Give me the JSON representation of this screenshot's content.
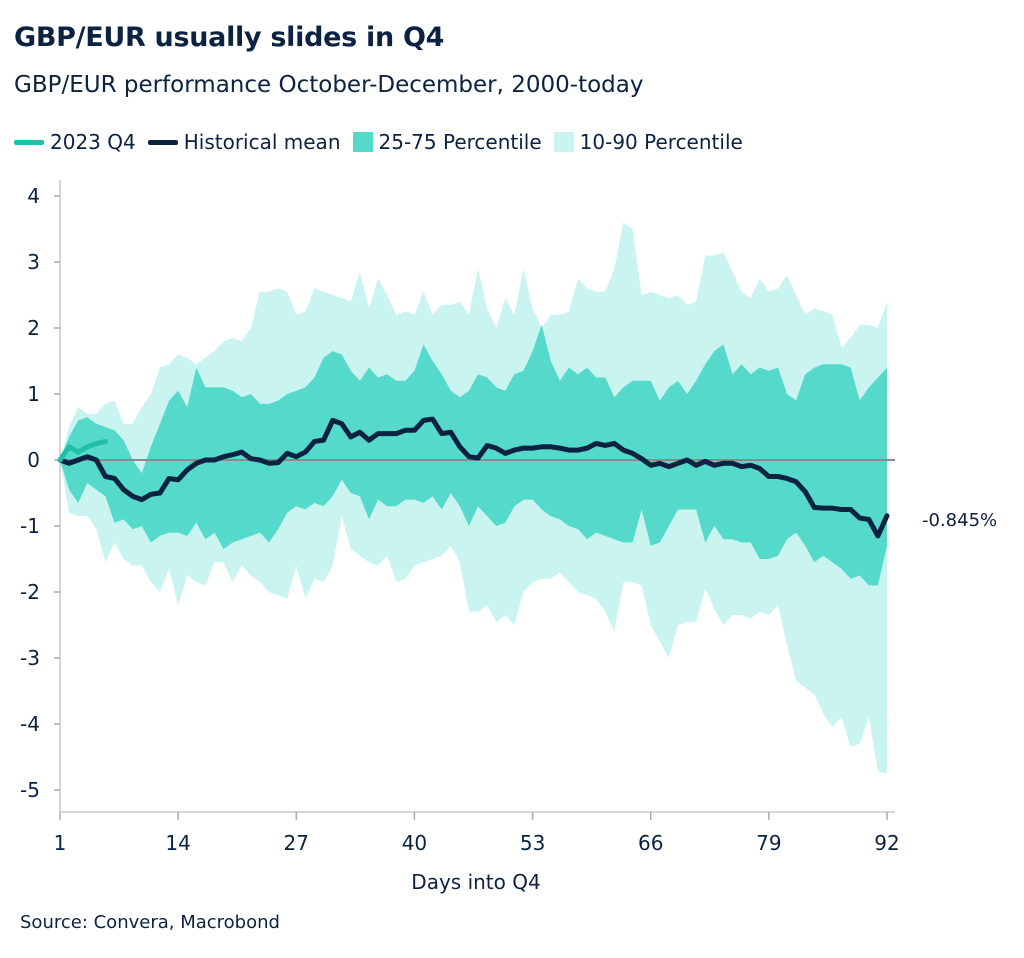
{
  "header": {
    "title": "GBP/EUR usually slides in Q4",
    "subtitle": "GBP/EUR performance October-December, 2000-today"
  },
  "source": "Source: Convera, Macrobond",
  "colors": {
    "q4_2023": "#1fbfa8",
    "mean": "#0b2240",
    "p25_75": "#55d9cb",
    "p10_90": "#caf4ef",
    "zero_line": "#8a8a8a"
  },
  "chart_data": {
    "type": "area",
    "title": "GBP/EUR usually slides in Q4",
    "subtitle": "GBP/EUR performance October-December, 2000-today",
    "xlabel": "Days into Q4",
    "ylabel": "",
    "xlim": [
      1,
      92
    ],
    "ylim": [
      -5,
      4
    ],
    "xticks": [
      "1",
      "14",
      "27",
      "40",
      "53",
      "66",
      "79",
      "92"
    ],
    "yticks": [
      "4",
      "3",
      "2",
      "1",
      "0",
      "-1",
      "-2",
      "-3",
      "-4",
      "-5"
    ],
    "grid": false,
    "legend_position": "top",
    "end_label": "-0.845%",
    "legend": [
      "2023 Q4",
      "Historical mean",
      "25-75 Percentile",
      "10-90 Percentile"
    ],
    "series": {
      "q4_2023": [
        0,
        0.2,
        0.12,
        0.2,
        0.25,
        0.28
      ],
      "mean": [
        0,
        -0.05,
        0,
        0.05,
        0,
        -0.25,
        -0.28,
        -0.45,
        -0.55,
        -0.6,
        -0.52,
        -0.5,
        -0.28,
        -0.3,
        -0.15,
        -0.05,
        0,
        0,
        0.05,
        0.08,
        0.12,
        0.02,
        0,
        -0.05,
        -0.04,
        0.1,
        0.05,
        0.12,
        0.28,
        0.3,
        0.6,
        0.55,
        0.35,
        0.42,
        0.3,
        0.4,
        0.4,
        0.4,
        0.45,
        0.45,
        0.6,
        0.62,
        0.4,
        0.42,
        0.2,
        0.05,
        0.03,
        0.22,
        0.18,
        0.1,
        0.15,
        0.18,
        0.18,
        0.2,
        0.2,
        0.18,
        0.15,
        0.15,
        0.18,
        0.25,
        0.22,
        0.25,
        0.15,
        0.1,
        0.02,
        -0.08,
        -0.05,
        -0.1,
        -0.05,
        0,
        -0.08,
        -0.02,
        -0.08,
        -0.05,
        -0.05,
        -0.1,
        -0.08,
        -0.13,
        -0.25,
        -0.25,
        -0.28,
        -0.33,
        -0.48,
        -0.72,
        -0.73,
        -0.73,
        -0.75,
        -0.75,
        -0.88,
        -0.9,
        -1.15,
        -0.845
      ],
      "p90": [
        0,
        0.5,
        0.8,
        0.7,
        0.7,
        0.85,
        0.9,
        0.55,
        0.55,
        0.8,
        1.0,
        1.4,
        1.45,
        1.6,
        1.55,
        1.45,
        1.55,
        1.65,
        1.8,
        1.85,
        1.8,
        2.0,
        2.55,
        2.55,
        2.6,
        2.55,
        2.2,
        2.25,
        2.6,
        2.55,
        2.5,
        2.45,
        2.4,
        2.85,
        2.3,
        2.75,
        2.5,
        2.2,
        2.25,
        2.2,
        2.55,
        2.2,
        2.35,
        2.35,
        2.4,
        2.2,
        2.9,
        2.3,
        2.0,
        2.45,
        2.2,
        2.9,
        2.3,
        2.0,
        2.2,
        2.2,
        2.25,
        2.75,
        2.6,
        2.55,
        2.55,
        2.9,
        3.6,
        3.5,
        2.5,
        2.55,
        2.5,
        2.45,
        2.5,
        2.35,
        2.4,
        3.1,
        3.1,
        3.15,
        2.85,
        2.55,
        2.45,
        2.75,
        2.55,
        2.6,
        2.8,
        2.5,
        2.2,
        2.3,
        2.25,
        2.2,
        1.7,
        1.85,
        2.05,
        2.05,
        2.0,
        2.4
      ],
      "p75": [
        0,
        0.35,
        0.6,
        0.65,
        0.55,
        0.5,
        0.45,
        0.3,
        0.0,
        -0.2,
        0.2,
        0.55,
        0.9,
        1.05,
        0.8,
        1.4,
        1.1,
        1.1,
        1.1,
        1.05,
        0.95,
        1.0,
        0.85,
        0.85,
        0.9,
        1.0,
        1.05,
        1.1,
        1.25,
        1.55,
        1.65,
        1.6,
        1.35,
        1.2,
        1.4,
        1.25,
        1.3,
        1.2,
        1.2,
        1.35,
        1.75,
        1.5,
        1.3,
        1.05,
        0.95,
        1.05,
        1.3,
        1.25,
        1.1,
        1.05,
        1.3,
        1.35,
        1.65,
        2.05,
        1.5,
        1.2,
        1.4,
        1.3,
        1.4,
        1.25,
        1.25,
        0.95,
        1.1,
        1.2,
        1.2,
        1.2,
        0.9,
        1.1,
        1.2,
        1.0,
        1.2,
        1.45,
        1.65,
        1.75,
        1.3,
        1.45,
        1.3,
        1.4,
        1.35,
        1.4,
        1.0,
        0.9,
        1.3,
        1.4,
        1.45,
        1.45,
        1.45,
        1.4,
        0.9,
        1.1,
        1.25,
        1.4
      ],
      "p25": [
        0,
        -0.45,
        -0.65,
        -0.35,
        -0.45,
        -0.55,
        -0.95,
        -0.9,
        -1.05,
        -1.0,
        -1.25,
        -1.15,
        -1.1,
        -1.1,
        -1.15,
        -0.95,
        -1.2,
        -1.1,
        -1.35,
        -1.25,
        -1.2,
        -1.15,
        -1.1,
        -1.25,
        -1.05,
        -0.8,
        -0.7,
        -0.75,
        -0.65,
        -0.7,
        -0.55,
        -0.3,
        -0.5,
        -0.55,
        -0.9,
        -0.6,
        -0.7,
        -0.7,
        -0.6,
        -0.6,
        -0.65,
        -0.55,
        -0.75,
        -0.5,
        -0.7,
        -1.0,
        -0.7,
        -0.85,
        -1.0,
        -0.95,
        -0.7,
        -0.6,
        -0.6,
        -0.75,
        -0.85,
        -0.9,
        -1.0,
        -1.05,
        -1.2,
        -1.1,
        -1.15,
        -1.2,
        -1.25,
        -1.25,
        -0.75,
        -1.3,
        -1.25,
        -1.0,
        -0.75,
        -0.75,
        -0.75,
        -1.25,
        -1.0,
        -1.2,
        -1.2,
        -1.25,
        -1.25,
        -1.5,
        -1.5,
        -1.45,
        -1.2,
        -1.1,
        -1.3,
        -1.55,
        -1.45,
        -1.55,
        -1.65,
        -1.8,
        -1.75,
        -1.9,
        -1.9,
        -1.3
      ],
      "p10": [
        0,
        -0.8,
        -0.85,
        -0.85,
        -1.05,
        -1.55,
        -1.25,
        -1.5,
        -1.6,
        -1.6,
        -1.85,
        -2.0,
        -1.65,
        -2.2,
        -1.75,
        -1.85,
        -1.9,
        -1.55,
        -1.55,
        -1.85,
        -1.6,
        -1.75,
        -1.85,
        -2.0,
        -2.05,
        -2.1,
        -1.6,
        -2.1,
        -1.8,
        -1.85,
        -1.6,
        -0.85,
        -1.35,
        -1.45,
        -1.55,
        -1.6,
        -1.45,
        -1.85,
        -1.8,
        -1.6,
        -1.55,
        -1.5,
        -1.45,
        -1.3,
        -1.55,
        -2.3,
        -2.3,
        -2.2,
        -2.45,
        -2.35,
        -2.5,
        -2.0,
        -1.85,
        -1.8,
        -1.8,
        -1.7,
        -1.85,
        -2.0,
        -2.05,
        -2.1,
        -2.3,
        -2.6,
        -1.85,
        -1.85,
        -1.9,
        -2.5,
        -2.75,
        -3.0,
        -2.5,
        -2.45,
        -2.45,
        -1.95,
        -2.25,
        -2.5,
        -2.35,
        -2.35,
        -2.4,
        -2.3,
        -2.35,
        -2.2,
        -2.8,
        -3.35,
        -3.45,
        -3.55,
        -3.85,
        -4.05,
        -3.9,
        -4.35,
        -4.3,
        -3.9,
        -4.72,
        -4.75
      ]
    }
  }
}
